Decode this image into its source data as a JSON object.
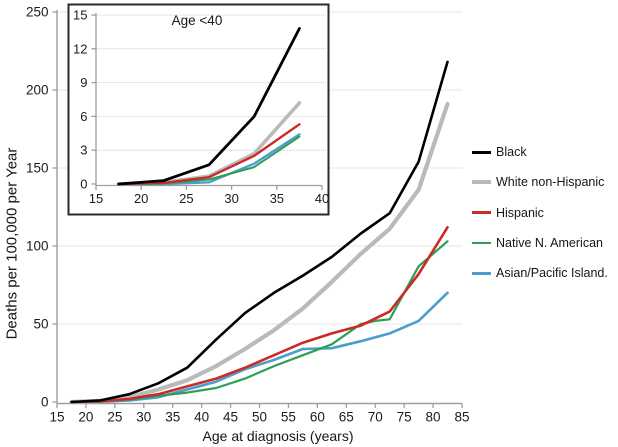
{
  "figure_background": "#ffffff",
  "chart_data": [
    {
      "id": "main",
      "type": "line",
      "title": "",
      "xlabel": "Age at diagnosis (years)",
      "ylabel": "Deaths per 100,000 per Year",
      "xlim": [
        15,
        85
      ],
      "ylim": [
        0,
        250
      ],
      "xticks": [
        15,
        20,
        25,
        30,
        35,
        40,
        45,
        50,
        55,
        60,
        65,
        70,
        75,
        80,
        85
      ],
      "yticks": [
        0,
        50,
        100,
        150,
        200,
        250
      ],
      "grid": "horizontal",
      "legend_position": "right",
      "series": [
        {
          "name": "Black",
          "color": "#000000",
          "width": 2.6,
          "z": 5,
          "points": [
            [
              17.5,
              0
            ],
            [
              22.5,
              1
            ],
            [
              27.5,
              5
            ],
            [
              32.5,
              12
            ],
            [
              37.5,
              22
            ],
            [
              42.5,
              40
            ],
            [
              47.5,
              57
            ],
            [
              52.5,
              70
            ],
            [
              57.5,
              81
            ],
            [
              62.5,
              93
            ],
            [
              67.5,
              108
            ],
            [
              72.5,
              121
            ],
            [
              77.5,
              154
            ],
            [
              82.5,
              218
            ]
          ]
        },
        {
          "name": "White non-Hispanic",
          "color": "#bababa",
          "width": 4.2,
          "z": 1,
          "points": [
            [
              17.5,
              0
            ],
            [
              22.5,
              0.7
            ],
            [
              27.5,
              3
            ],
            [
              32.5,
              8
            ],
            [
              37.5,
              14
            ],
            [
              42.5,
              23
            ],
            [
              47.5,
              34
            ],
            [
              52.5,
              46
            ],
            [
              57.5,
              60
            ],
            [
              62.5,
              77
            ],
            [
              67.5,
              95
            ],
            [
              72.5,
              111
            ],
            [
              77.5,
              136
            ],
            [
              82.5,
              191
            ]
          ]
        },
        {
          "name": "Hispanic",
          "color": "#cb2b27",
          "width": 2.6,
          "z": 4,
          "points": [
            [
              17.5,
              0
            ],
            [
              22.5,
              0.5
            ],
            [
              27.5,
              2
            ],
            [
              32.5,
              5
            ],
            [
              37.5,
              10
            ],
            [
              42.5,
              15
            ],
            [
              47.5,
              22
            ],
            [
              52.5,
              30
            ],
            [
              57.5,
              38
            ],
            [
              62.5,
              44
            ],
            [
              67.5,
              49
            ],
            [
              72.5,
              58
            ],
            [
              77.5,
              82
            ],
            [
              82.5,
              112
            ]
          ]
        },
        {
          "name": "Native N. American",
          "color": "#2d9e57",
          "width": 2.2,
          "z": 3,
          "points": [
            [
              17.5,
              0
            ],
            [
              22.5,
              0.3
            ],
            [
              27.5,
              1.5
            ],
            [
              32.5,
              4
            ],
            [
              37.5,
              6
            ],
            [
              42.5,
              9
            ],
            [
              47.5,
              15
            ],
            [
              52.5,
              23
            ],
            [
              57.5,
              30
            ],
            [
              62.5,
              37
            ],
            [
              67.5,
              50
            ],
            [
              70,
              52
            ],
            [
              72.5,
              53
            ],
            [
              77.5,
              87
            ],
            [
              82.5,
              103
            ]
          ]
        },
        {
          "name": "Asian/Pacific Island.",
          "color": "#4c9dcb",
          "width": 2.6,
          "z": 2,
          "points": [
            [
              17.5,
              0
            ],
            [
              22.5,
              0.2
            ],
            [
              27.5,
              1
            ],
            [
              32.5,
              3
            ],
            [
              37.5,
              8
            ],
            [
              42.5,
              13
            ],
            [
              47.5,
              21
            ],
            [
              52.5,
              27
            ],
            [
              57.5,
              34
            ],
            [
              62.5,
              34.5
            ],
            [
              67.5,
              39
            ],
            [
              72.5,
              44
            ],
            [
              77.5,
              52
            ],
            [
              82.5,
              70
            ]
          ]
        }
      ]
    },
    {
      "id": "inset",
      "type": "line",
      "title": "Age <40",
      "xlabel": "",
      "ylabel": "",
      "xlim": [
        15,
        40
      ],
      "ylim": [
        0,
        15
      ],
      "xticks": [
        15,
        20,
        25,
        30,
        35,
        40
      ],
      "yticks": [
        0,
        3,
        6,
        9,
        12,
        15
      ],
      "grid": "horizontal",
      "series": [
        {
          "name": "Black",
          "color": "#000000",
          "width": 2.8,
          "z": 5,
          "points": [
            [
              17.5,
              0
            ],
            [
              22.5,
              0.3
            ],
            [
              27.5,
              1.7
            ],
            [
              32.5,
              6
            ],
            [
              37.5,
              13.8
            ]
          ]
        },
        {
          "name": "White non-Hispanic",
          "color": "#bababa",
          "width": 3.6,
          "z": 1,
          "points": [
            [
              17.5,
              0
            ],
            [
              22.5,
              0.15
            ],
            [
              27.5,
              0.7
            ],
            [
              32.5,
              2.7
            ],
            [
              37.5,
              7.2
            ]
          ]
        },
        {
          "name": "Hispanic",
          "color": "#cb2b27",
          "width": 2.4,
          "z": 4,
          "points": [
            [
              17.5,
              0
            ],
            [
              22.5,
              0.1
            ],
            [
              27.5,
              0.6
            ],
            [
              32.5,
              2.5
            ],
            [
              37.5,
              5.3
            ]
          ]
        },
        {
          "name": "Native N. American",
          "color": "#2d9e57",
          "width": 2.0,
          "z": 3,
          "points": [
            [
              17.5,
              0
            ],
            [
              22.5,
              0.05
            ],
            [
              27.5,
              0.4
            ],
            [
              32.5,
              1.5
            ],
            [
              37.5,
              4.2
            ]
          ]
        },
        {
          "name": "Asian/Pacific Island.",
          "color": "#4c9dcb",
          "width": 2.4,
          "z": 2,
          "points": [
            [
              17.5,
              0
            ],
            [
              22.5,
              0
            ],
            [
              27.5,
              0.15
            ],
            [
              32.5,
              1.8
            ],
            [
              37.5,
              4.4
            ]
          ]
        }
      ]
    }
  ],
  "legend": {
    "entries": [
      "Black",
      "White non-Hispanic",
      "Hispanic",
      "Native N. American",
      "Asian/Pacific Island."
    ]
  }
}
